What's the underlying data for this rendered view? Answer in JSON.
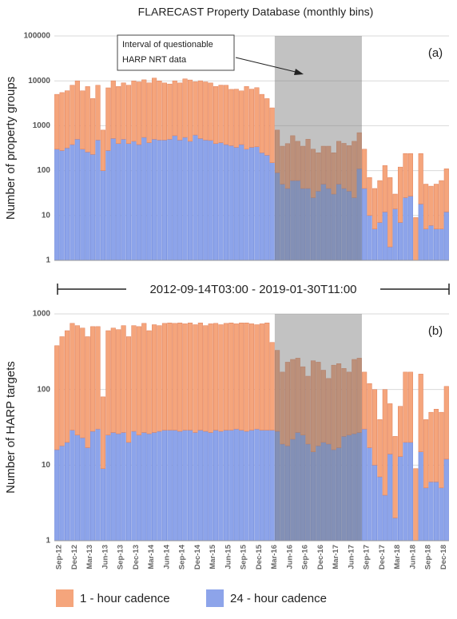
{
  "chart_data": [
    {
      "type": "bar",
      "stacked": true,
      "log": true,
      "grid": true,
      "title": "FLARECAST Property Database (monthly bins)",
      "time_range": "2012-09-14T03:00 - 2019-01-30T11:00",
      "ylabel": "Number of property groups",
      "panel_label": "(a)",
      "annotation": [
        "Interval of questionable",
        "HARP NRT data"
      ],
      "ylim": [
        1,
        100000
      ],
      "yticks": [
        1,
        10,
        100,
        1000,
        10000,
        100000
      ],
      "series": [
        {
          "name": "24 - hour cadence",
          "color": "#8da4ea",
          "values": [
            300,
            280,
            320,
            380,
            500,
            300,
            260,
            230,
            480,
            100,
            280,
            520,
            400,
            500,
            400,
            450,
            380,
            550,
            420,
            500,
            480,
            480,
            500,
            600,
            480,
            550,
            450,
            620,
            520,
            480,
            470,
            400,
            420,
            380,
            360,
            330,
            380,
            300,
            330,
            340,
            250,
            220,
            150,
            90,
            50,
            40,
            60,
            60,
            40,
            40,
            25,
            35,
            50,
            40,
            30,
            50,
            40,
            35,
            25,
            110,
            40,
            10,
            5,
            7,
            12,
            2,
            14,
            7,
            25,
            27,
            1,
            18,
            5,
            6,
            5,
            5,
            12
          ]
        },
        {
          "name": "1 - hour cadence",
          "color": "#f5a57c",
          "values": [
            4700,
            5200,
            5700,
            7600,
            9500,
            5700,
            7200,
            3800,
            7500,
            700,
            6700,
            9500,
            7100,
            8500,
            7600,
            9500,
            9100,
            10000,
            8600,
            11000,
            9500,
            8500,
            8000,
            9400,
            8500,
            10500,
            10000,
            8900,
            9500,
            9000,
            8500,
            7100,
            7600,
            7600,
            6100,
            6200,
            5600,
            7200,
            6200,
            6700,
            4750,
            3800,
            2350,
            710,
            300,
            360,
            540,
            390,
            310,
            460,
            275,
            215,
            300,
            310,
            220,
            400,
            365,
            325,
            425,
            590,
            260,
            60,
            35,
            53,
            118,
            68,
            16,
            113,
            215,
            213,
            8,
            222,
            45,
            39,
            45,
            55,
            98
          ]
        }
      ]
    },
    {
      "type": "bar",
      "stacked": true,
      "log": true,
      "grid": true,
      "ylabel": "Number of HARP targets",
      "panel_label": "(b)",
      "ylim": [
        1,
        1000
      ],
      "yticks": [
        1,
        10,
        100,
        1000
      ],
      "categories": [
        "Sep-12",
        null,
        null,
        "Dec-12",
        null,
        null,
        "Mar-13",
        null,
        null,
        "Jun-13",
        null,
        null,
        "Sep-13",
        null,
        null,
        "Dec-13",
        null,
        null,
        "Mar-14",
        null,
        null,
        "Jun-14",
        null,
        null,
        "Sep-14",
        null,
        null,
        "Dec-14",
        null,
        null,
        "Mar-15",
        null,
        null,
        "Jun-15",
        null,
        null,
        "Sep-15",
        null,
        null,
        "Dec-15",
        null,
        null,
        "Mar-16",
        null,
        null,
        "Jun-16",
        null,
        null,
        "Sep-16",
        null,
        null,
        "Dec-16",
        null,
        null,
        "Mar-17",
        null,
        null,
        "Jun-17",
        null,
        null,
        "Sep-17",
        null,
        null,
        "Dec-17",
        null,
        null,
        "Mar-18",
        null,
        null,
        "Jun-18",
        null,
        null,
        "Sep-18",
        null,
        null,
        "Dec-18",
        null
      ],
      "series": [
        {
          "values": [
            16,
            18,
            20,
            29,
            25,
            23,
            17,
            28,
            30,
            9,
            25,
            27,
            26,
            27,
            20,
            28,
            25,
            27,
            26,
            27,
            28,
            29,
            29,
            29,
            28,
            29,
            29,
            27,
            29,
            28,
            27,
            29,
            28,
            29,
            29,
            30,
            29,
            28,
            29,
            30,
            29,
            29,
            29,
            28,
            19,
            18,
            22,
            27,
            25,
            19,
            15,
            18,
            20,
            19,
            16,
            17,
            24,
            25,
            26,
            27,
            30,
            17,
            10,
            7,
            4,
            14,
            2,
            13,
            20,
            20,
            1,
            15,
            5,
            6,
            6,
            5,
            12
          ]
        },
        {
          "values": [
            364,
            482,
            580,
            721,
            675,
            627,
            483,
            652,
            650,
            71,
            575,
            623,
            594,
            673,
            480,
            672,
            655,
            723,
            574,
            693,
            672,
            721,
            731,
            721,
            732,
            711,
            731,
            693,
            731,
            672,
            713,
            721,
            692,
            721,
            731,
            710,
            731,
            732,
            711,
            690,
            711,
            731,
            391,
            302,
            151,
            212,
            228,
            233,
            175,
            131,
            225,
            212,
            160,
            121,
            194,
            203,
            166,
            145,
            224,
            233,
            140,
            103,
            90,
            33,
            96,
            51,
            22,
            47,
            150,
            150,
            8,
            145,
            35,
            44,
            49,
            45,
            98
          ]
        }
      ]
    }
  ]
}
